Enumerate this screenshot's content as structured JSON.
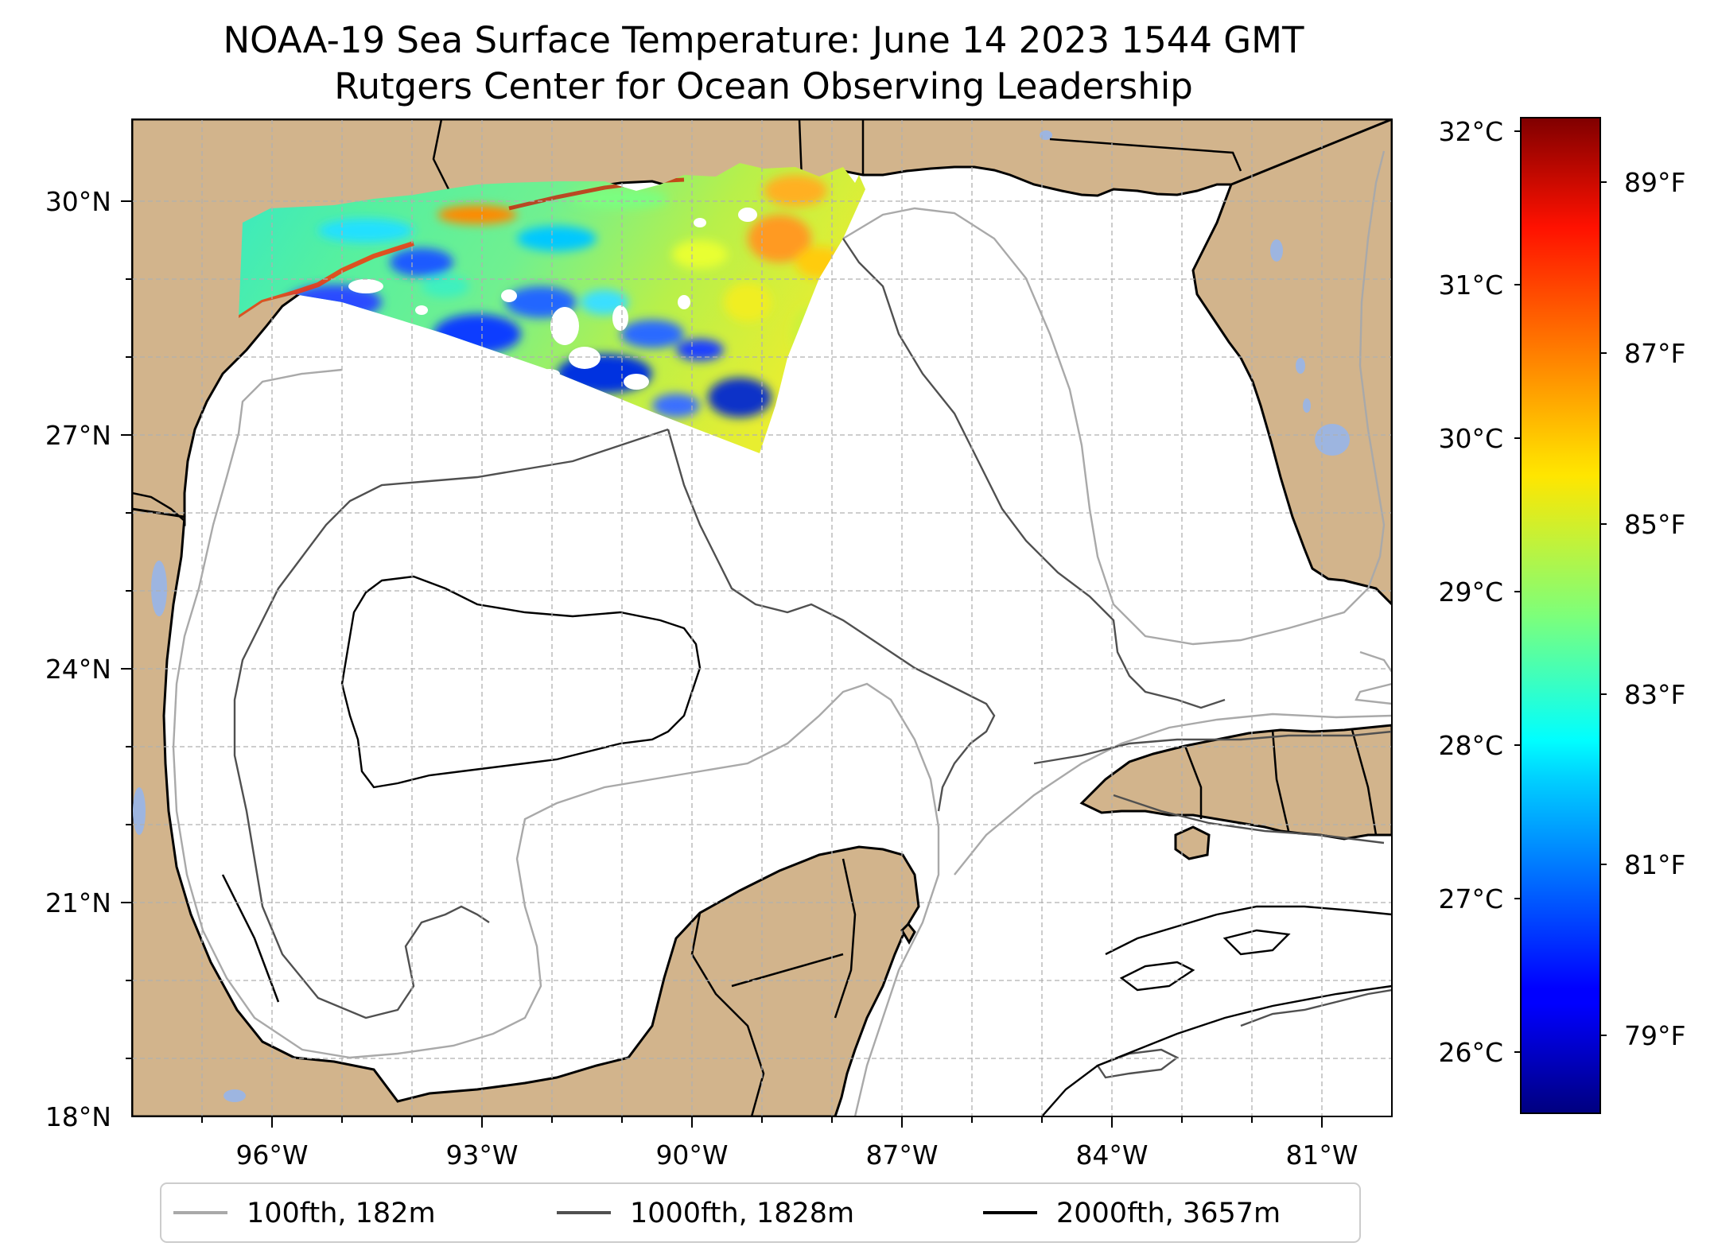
{
  "title": "NOAA-19 Sea Surface Temperature: June 14 2023 1544 GMT",
  "subtitle": "Rutgers Center for Ocean Observing Leadership",
  "map": {
    "lon_range": [
      -98.0,
      -80.0
    ],
    "lat_range": [
      18.0,
      31.0
    ],
    "lon_ticks": [
      {
        "value": -96,
        "label": "96°W"
      },
      {
        "value": -93,
        "label": "93°W"
      },
      {
        "value": -90,
        "label": "90°W"
      },
      {
        "value": -87,
        "label": "87°W"
      },
      {
        "value": -84,
        "label": "84°W"
      },
      {
        "value": -81,
        "label": "81°W"
      }
    ],
    "lat_ticks": [
      {
        "value": 30,
        "label": "30°N"
      },
      {
        "value": 27,
        "label": "27°N"
      },
      {
        "value": 24,
        "label": "24°N"
      },
      {
        "value": 21,
        "label": "21°N"
      },
      {
        "value": 18,
        "label": "18°N"
      }
    ],
    "gridlines": true,
    "colors": {
      "land": "#d2b48c",
      "lakes": "#9db5e0",
      "isobath_100": "#a9a9a9",
      "isobath_1000": "#505050",
      "isobath_2000": "#000000"
    }
  },
  "colorbar": {
    "colormap": "jet",
    "celsius_ticks": [
      {
        "value": 32,
        "label": "32°C"
      },
      {
        "value": 31,
        "label": "31°C"
      },
      {
        "value": 30,
        "label": "30°C"
      },
      {
        "value": 29,
        "label": "29°C"
      },
      {
        "value": 28,
        "label": "28°C"
      },
      {
        "value": 27,
        "label": "27°C"
      },
      {
        "value": 26,
        "label": "26°C"
      }
    ],
    "fahrenheit_ticks": [
      {
        "value": 89,
        "label": "89°F"
      },
      {
        "value": 87,
        "label": "87°F"
      },
      {
        "value": 85,
        "label": "85°F"
      },
      {
        "value": 83,
        "label": "83°F"
      },
      {
        "value": 81,
        "label": "81°F"
      },
      {
        "value": 79,
        "label": "79°F"
      }
    ],
    "range_c": [
      25.6,
      32.1
    ]
  },
  "legend": [
    {
      "label": "100fth, 182m",
      "color": "#a9a9a9"
    },
    {
      "label": "1000fth, 1828m",
      "color": "#505050"
    },
    {
      "label": "2000fth, 3657m",
      "color": "#000000"
    }
  ]
}
